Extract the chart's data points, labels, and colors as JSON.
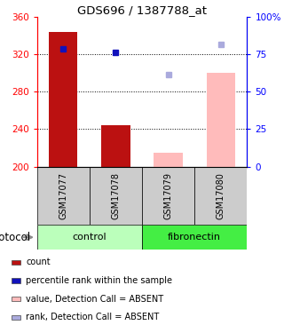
{
  "title": "GDS696 / 1387788_at",
  "samples": [
    "GSM17077",
    "GSM17078",
    "GSM17079",
    "GSM17080"
  ],
  "groups": [
    "control",
    "control",
    "fibronectin",
    "fibronectin"
  ],
  "bar_values": [
    344,
    244,
    null,
    null
  ],
  "bar_absent_values": [
    null,
    null,
    215,
    300
  ],
  "dot_values": [
    326,
    322,
    null,
    null
  ],
  "dot_absent_values": [
    null,
    null,
    298,
    330
  ],
  "ylim": [
    200,
    360
  ],
  "yticks_left": [
    200,
    240,
    280,
    320,
    360
  ],
  "yticks_right_pct": [
    0,
    25,
    50,
    75,
    100
  ],
  "ytick_right_labels": [
    "0",
    "25",
    "50",
    "75",
    "100%"
  ],
  "grid_values": [
    240,
    280,
    320
  ],
  "bar_color_red": "#bb1111",
  "bar_color_pink": "#ffbbbb",
  "dot_color_blue": "#1111bb",
  "dot_color_lightblue": "#aaaadd",
  "group_colors": {
    "control": "#bbffbb",
    "fibronectin": "#44ee44"
  },
  "sample_box_color": "#cccccc",
  "legend_items": [
    {
      "color": "#bb1111",
      "label": "count"
    },
    {
      "color": "#1111bb",
      "label": "percentile rank within the sample"
    },
    {
      "color": "#ffbbbb",
      "label": "value, Detection Call = ABSENT"
    },
    {
      "color": "#aaaadd",
      "label": "rank, Detection Call = ABSENT"
    }
  ],
  "protocol_label": "protocol",
  "bar_width": 0.55
}
